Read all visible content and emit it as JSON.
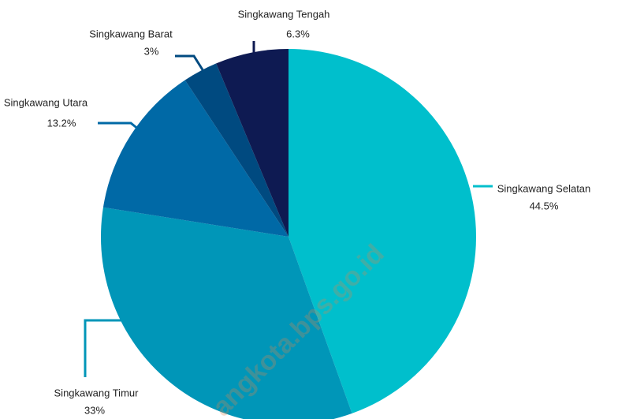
{
  "chart_data": {
    "type": "pie",
    "categories": [
      "Singkawang Selatan",
      "Singkawang Timur",
      "Singkawang Utara",
      "Singkawang Barat",
      "Singkawang Tengah"
    ],
    "values": [
      44.5,
      33,
      13.2,
      3,
      6.3
    ],
    "value_labels": [
      "44.5%",
      "33%",
      "13.2%",
      "3%",
      "6.3%"
    ],
    "colors": [
      "#00bfcc",
      "#0096b8",
      "#0069a6",
      "#004a80",
      "#0e1a52"
    ],
    "watermark": "angkota.bps.go.id"
  }
}
